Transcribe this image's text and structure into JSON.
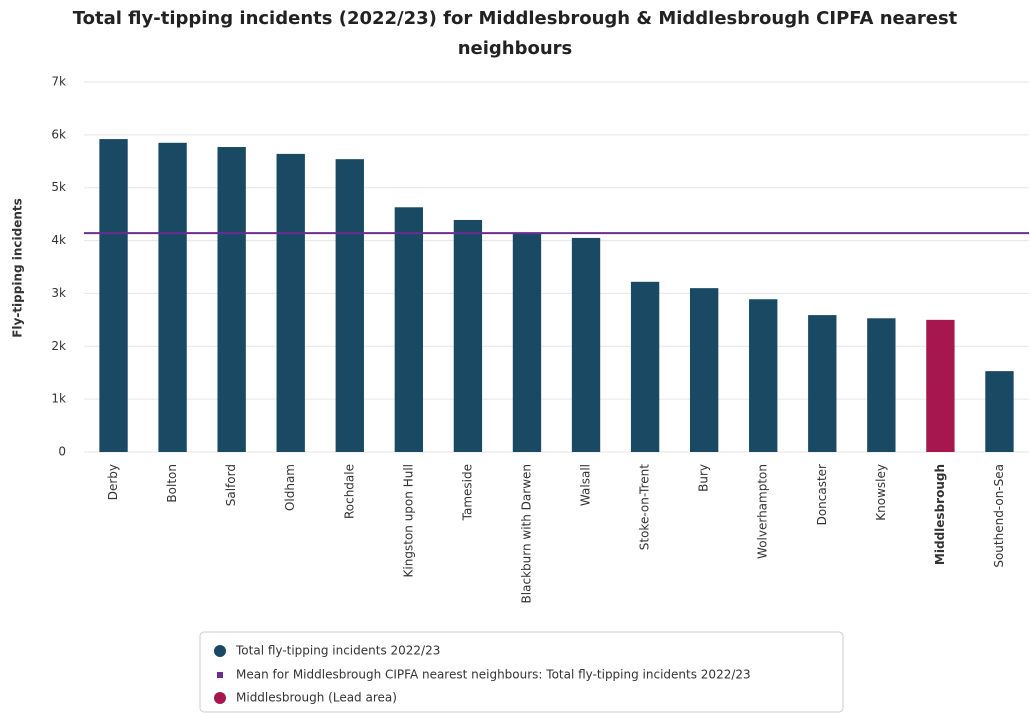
{
  "chart_data": {
    "type": "bar",
    "title": "Total fly-tipping incidents (2022/23) for Middlesbrough & Middlesbrough CIPFA nearest neighbours",
    "y_label": "Fly-tipping incidents",
    "categories": [
      "Derby",
      "Bolton",
      "Salford",
      "Oldham",
      "Rochdale",
      "Kingston upon Hull",
      "Tameside",
      "Blackburn with Darwen",
      "Walsall",
      "Stoke-on-Trent",
      "Bury",
      "Wolverhampton",
      "Doncaster",
      "Knowsley",
      "Middlesbrough",
      "Southend-on-Sea"
    ],
    "series": [
      {
        "name": "Total fly-tipping incidents 2022/23",
        "color": "#1a4a63",
        "values": [
          5920,
          5850,
          5770,
          5640,
          5540,
          4630,
          4390,
          4140,
          4050,
          3220,
          3100,
          2890,
          2590,
          2530,
          2500,
          1530
        ]
      }
    ],
    "reference_line": {
      "name": "Mean for Middlesbrough CIPFA nearest neighbours: Total fly-tipping incidents 2022/23",
      "value": 4140,
      "color": "#6b2d8f"
    },
    "highlight": {
      "name": "Middlesbrough (Lead area)",
      "category": "Middlesbrough",
      "color": "#a8164f"
    },
    "ylim": [
      0,
      7000
    ],
    "yticks": [
      0,
      {
        "value": 1000,
        "label": "1k"
      },
      {
        "value": 2000,
        "label": "2k"
      },
      {
        "value": 3000,
        "label": "3k"
      },
      {
        "value": 4000,
        "label": "4k"
      },
      {
        "value": 5000,
        "label": "5k"
      },
      {
        "value": 6000,
        "label": "6k"
      },
      {
        "value": 7000,
        "label": "7k"
      }
    ],
    "grid": true
  }
}
